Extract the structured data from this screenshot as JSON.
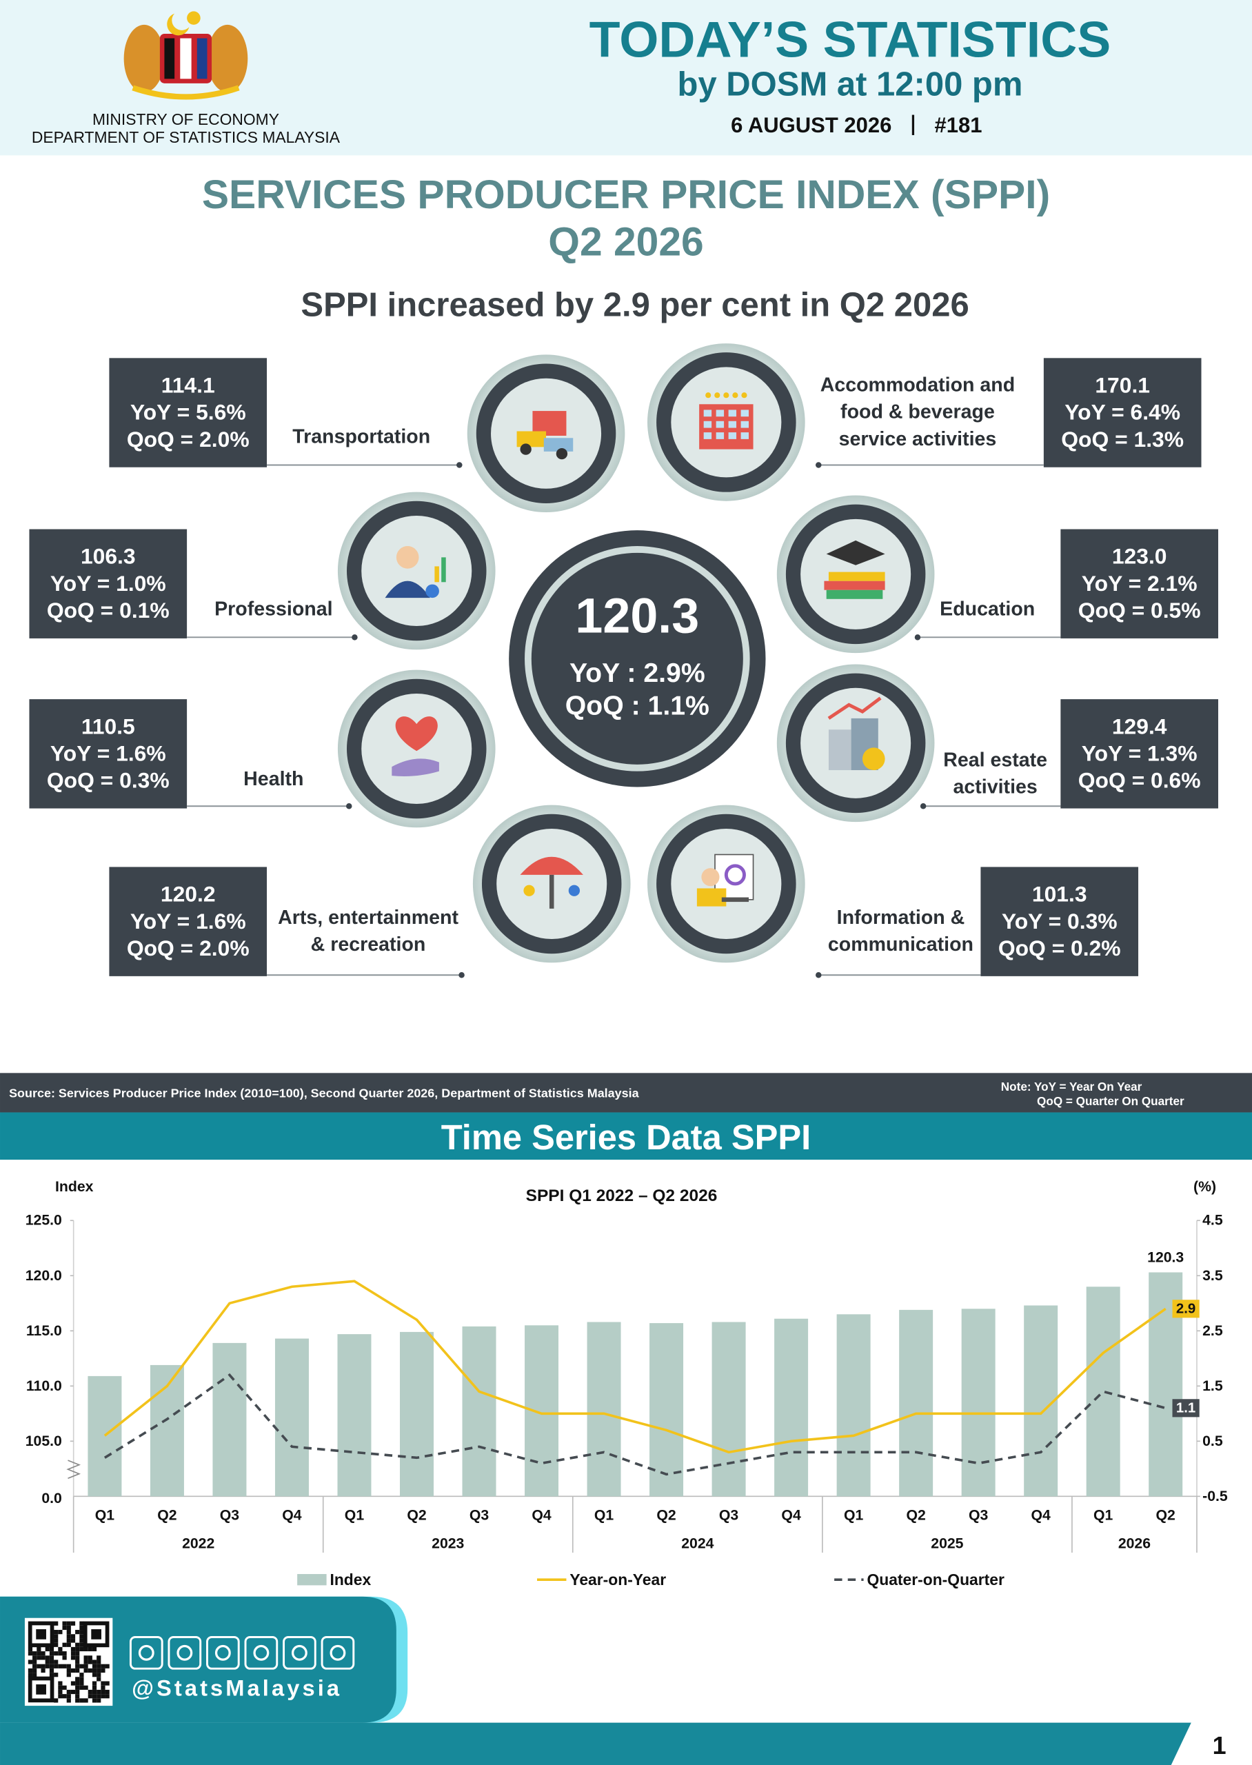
{
  "header": {
    "ministry": "MINISTRY OF ECONOMY",
    "department": "DEPARTMENT OF STATISTICS MALAYSIA",
    "title": "TODAY’S STATISTICS",
    "subtitle": "by DOSM at 12:00 pm",
    "date": "6 AUGUST 2026",
    "issue": "#181"
  },
  "report": {
    "title_lines": [
      "SERVICES PRODUCER PRICE INDEX (SPPI)",
      "Q2 2026"
    ],
    "headline": "SPPI increased by 2.9 per cent in Q2 2026"
  },
  "overall": {
    "index": "120.3",
    "yoy": "YoY : 2.9%",
    "qoq": "QoQ : 1.1%"
  },
  "sectors": [
    {
      "label_lines": [
        "Transportation"
      ],
      "index": "114.1",
      "yoy": "YoY = 5.6%",
      "qoq": "QoQ = 2.0%"
    },
    {
      "label_lines": [
        "Accommodation and",
        "food & beverage",
        "service activities"
      ],
      "index": "170.1",
      "yoy": "YoY = 6.4%",
      "qoq": "QoQ = 1.3%"
    },
    {
      "label_lines": [
        "Professional"
      ],
      "index": "106.3",
      "yoy": "YoY = 1.0%",
      "qoq": "QoQ = 0.1%"
    },
    {
      "label_lines": [
        "Education"
      ],
      "index": "123.0",
      "yoy": "YoY = 2.1%",
      "qoq": "QoQ = 0.5%"
    },
    {
      "label_lines": [
        "Health"
      ],
      "index": "110.5",
      "yoy": "YoY = 1.6%",
      "qoq": "QoQ = 0.3%"
    },
    {
      "label_lines": [
        "Real estate",
        "activities"
      ],
      "index": "129.4",
      "yoy": "YoY = 1.3%",
      "qoq": "QoQ = 0.6%"
    },
    {
      "label_lines": [
        "Arts, entertainment",
        "& recreation"
      ],
      "index": "120.2",
      "yoy": "YoY = 1.6%",
      "qoq": "QoQ = 2.0%"
    },
    {
      "label_lines": [
        "Information &",
        "communication"
      ],
      "index": "101.3",
      "yoy": "YoY = 0.3%",
      "qoq": "QoQ = 0.2%"
    }
  ],
  "footer_note": {
    "source": "Source: Services Producer Price Index (2010=100), Second Quarter 2026, Department of Statistics Malaysia",
    "note_lines": [
      "Note: YoY = Year On Year",
      "QoQ = Quarter On Quarter"
    ]
  },
  "section_title": "Time Series Data SPPI",
  "chart_data": {
    "type": "combo",
    "title": "SPPI Q1 2022 – Q2 2026",
    "y_label": "Index",
    "y2_label": "(%)",
    "categories": [
      "Q1",
      "Q2",
      "Q3",
      "Q4",
      "Q1",
      "Q2",
      "Q3",
      "Q4",
      "Q1",
      "Q2",
      "Q3",
      "Q4",
      "Q1",
      "Q2",
      "Q3",
      "Q4",
      "Q1",
      "Q2"
    ],
    "x_groups": [
      "2022",
      "2022",
      "2022",
      "2022",
      "2023",
      "2023",
      "2023",
      "2023",
      "2024",
      "2024",
      "2024",
      "2024",
      "2025",
      "2025",
      "2025",
      "2025",
      "2026",
      "2026"
    ],
    "ylim": [
      100,
      125
    ],
    "yticks": [
      {
        "value": 105,
        "label": "105.0"
      },
      {
        "value": 110,
        "label": "110.0"
      },
      {
        "value": 115,
        "label": "115.0"
      },
      {
        "value": 120,
        "label": "120.0"
      },
      {
        "value": 125,
        "label": "125.0"
      }
    ],
    "y_break_label": "0.0",
    "y2lim": [
      -0.5,
      4.5
    ],
    "y2ticks": [
      -0.5,
      0.5,
      1.5,
      2.5,
      3.5,
      4.5
    ],
    "legend": "bottom",
    "series": [
      {
        "name": "Index",
        "type": "bar",
        "color": "#b5cdc6",
        "label_last": true,
        "values": [
          110.9,
          111.9,
          113.9,
          114.3,
          114.7,
          114.9,
          115.4,
          115.5,
          115.8,
          115.7,
          115.8,
          116.1,
          116.5,
          116.9,
          117.0,
          117.3,
          119.0,
          120.3
        ]
      },
      {
        "name": "Year-on-Year",
        "type": "line",
        "axis": "y2",
        "color": "#f2c21b",
        "line_style": "solid",
        "label_last": true,
        "values": [
          0.6,
          1.5,
          3.0,
          3.3,
          3.4,
          2.7,
          1.4,
          1.0,
          1.0,
          0.7,
          0.3,
          0.5,
          0.6,
          1.0,
          1.0,
          1.0,
          2.1,
          2.9
        ]
      },
      {
        "name": "Quater-on-Quarter",
        "type": "line",
        "axis": "y2",
        "color": "#454b51",
        "line_style": "dashed",
        "label_last": true,
        "values": [
          0.2,
          0.9,
          1.7,
          0.4,
          0.3,
          0.2,
          0.4,
          0.1,
          0.3,
          -0.1,
          0.1,
          0.3,
          0.3,
          0.3,
          0.1,
          0.3,
          1.4,
          1.1
        ]
      }
    ]
  },
  "social": {
    "handle": "@StatsMalaysia"
  },
  "page_number": "1"
}
